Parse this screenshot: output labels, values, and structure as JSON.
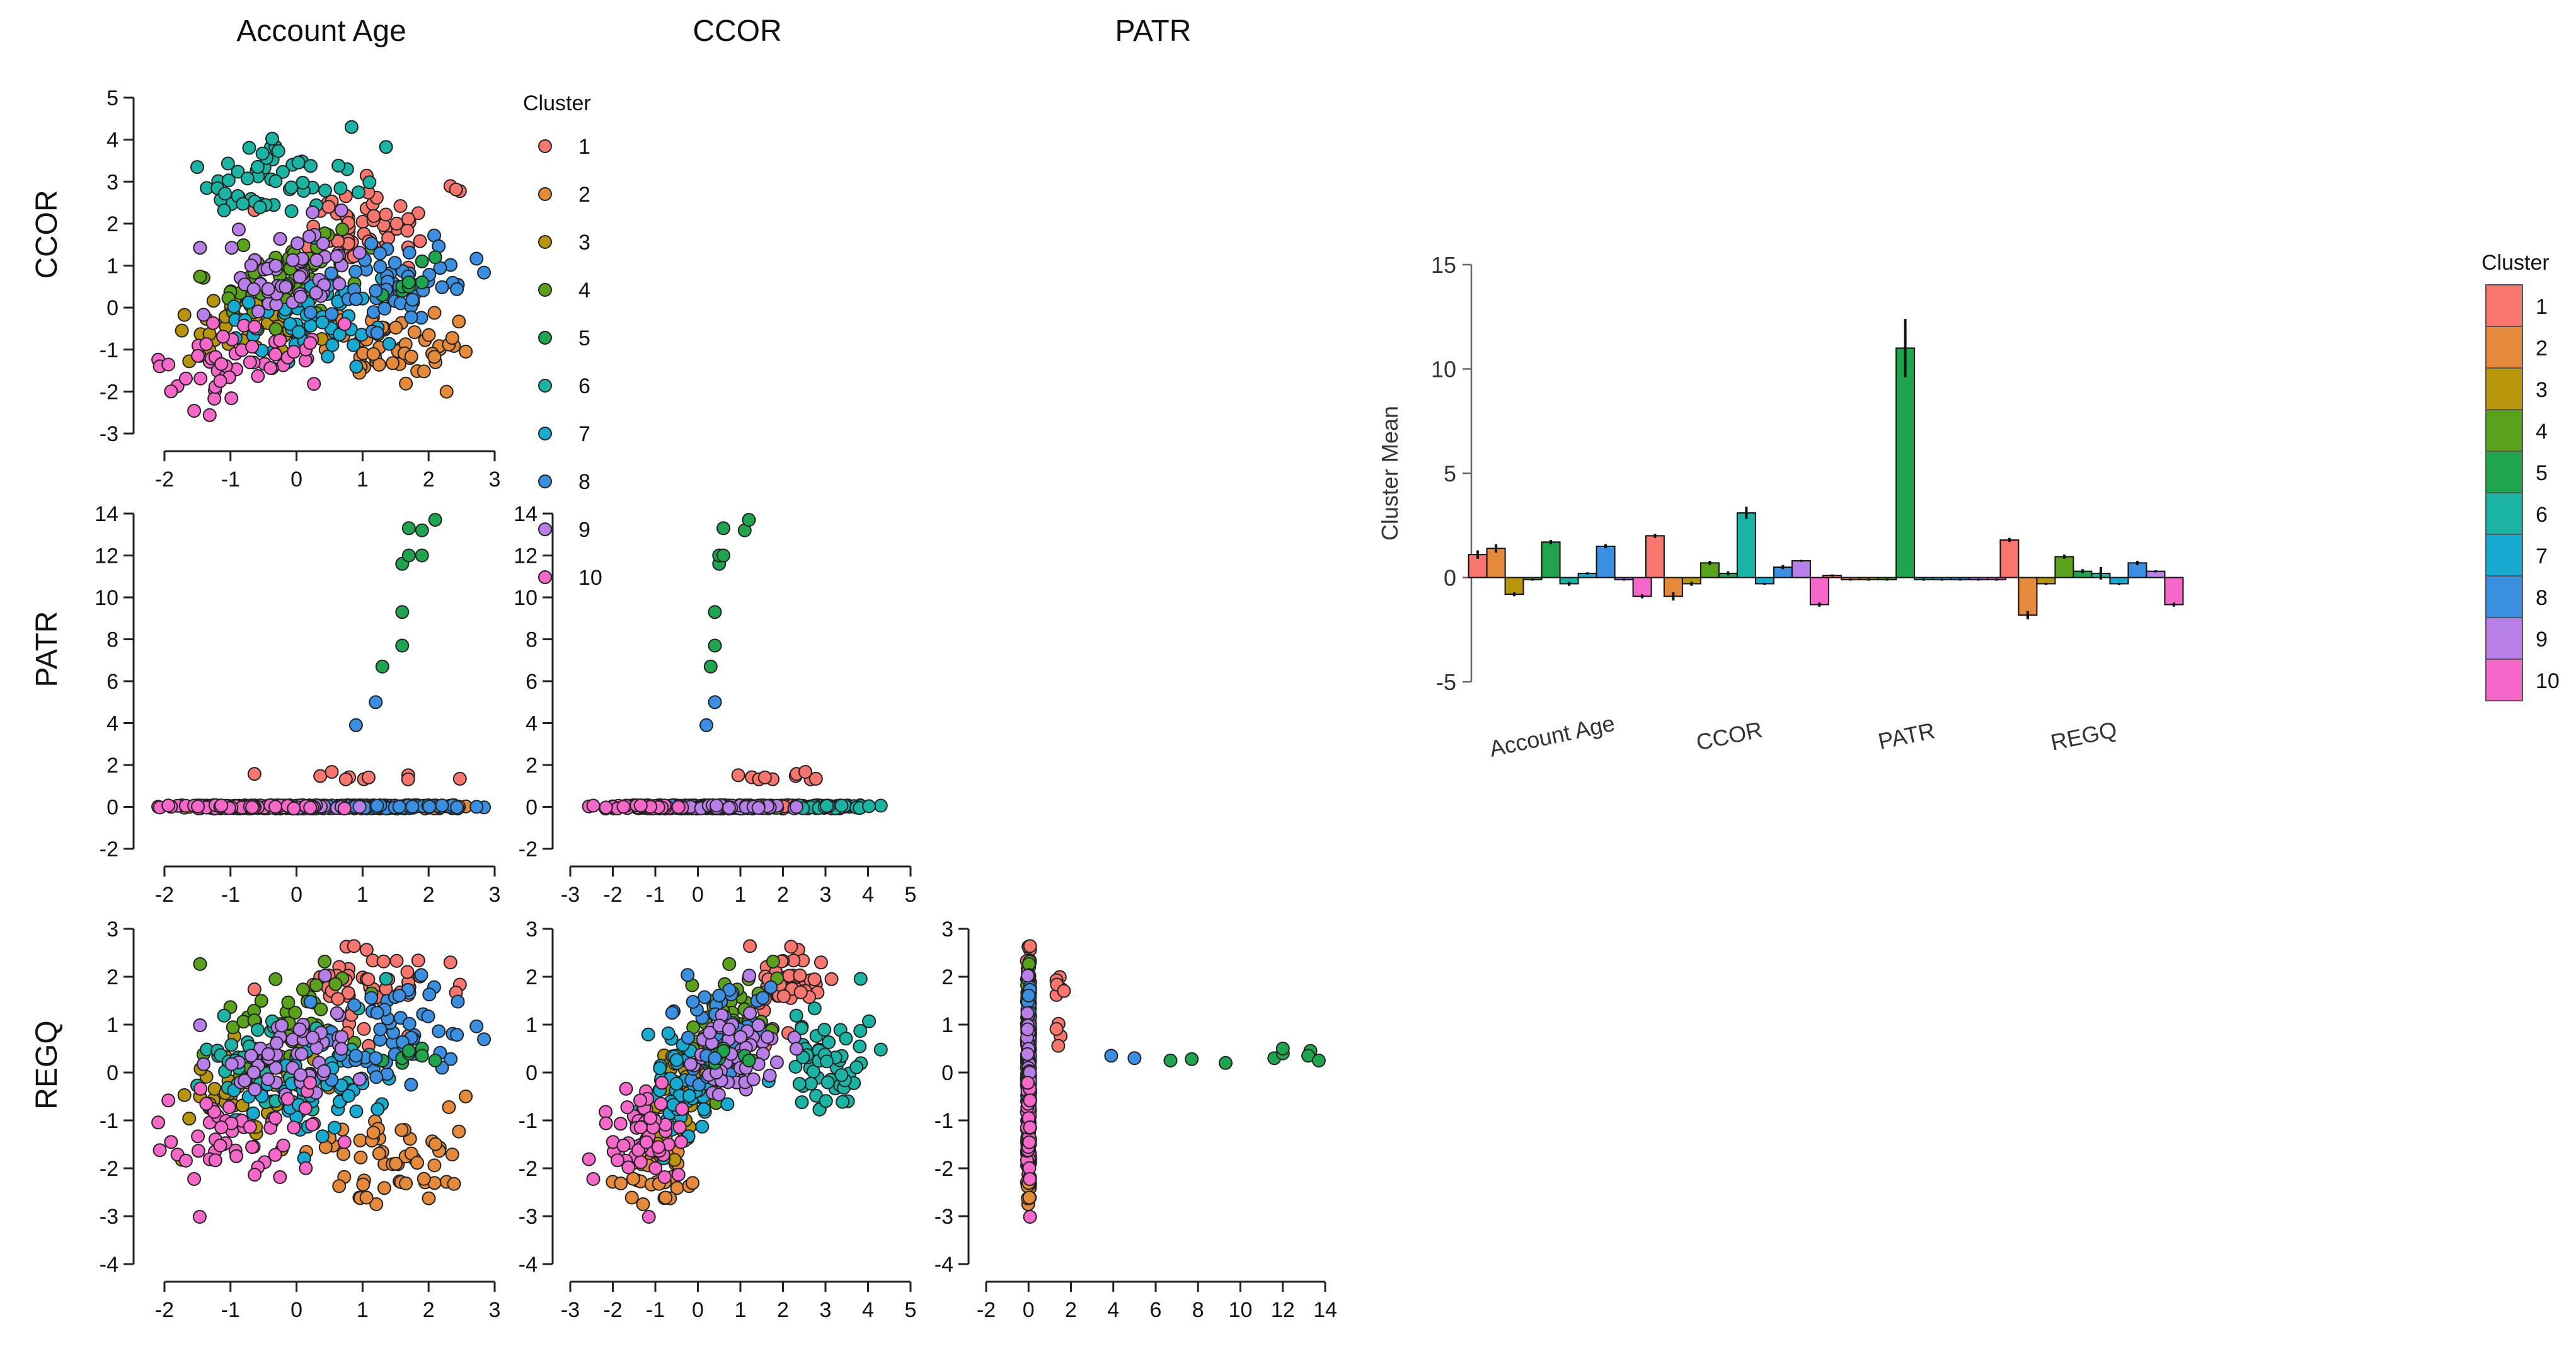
{
  "chart_data": [
    {
      "type": "scatter",
      "title": "",
      "variables": [
        "Account Age",
        "CCOR",
        "PATR",
        "REGQ"
      ],
      "column_titles": [
        "Account Age",
        "CCOR",
        "PATR"
      ],
      "row_titles": [
        "CCOR",
        "PATR",
        "REGQ"
      ],
      "legend": {
        "title": "Cluster",
        "labels": [
          "1",
          "2",
          "3",
          "4",
          "5",
          "6",
          "7",
          "8",
          "9",
          "10"
        ],
        "position": "top-center"
      },
      "cluster_colors": [
        "#F8766D",
        "#E58A3A",
        "#B8960C",
        "#5AA21B",
        "#1EA54D",
        "#1BB3A3",
        "#17ABD1",
        "#3A8FE0",
        "#B97FE8",
        "#F567C9"
      ],
      "axes": {
        "account_age_x": {
          "ticks": [
            -2,
            -1,
            0,
            1,
            2,
            3
          ],
          "range": [
            -2.2,
            3.0
          ]
        },
        "ccor_x": {
          "ticks": [
            -3,
            -2,
            -1,
            0,
            1,
            2,
            3,
            4,
            5
          ],
          "range": [
            -3.0,
            5.0
          ]
        },
        "patr_x": {
          "ticks": [
            -2,
            0,
            2,
            4,
            6,
            8,
            10,
            12,
            14
          ],
          "range": [
            -2.0,
            14.0
          ]
        },
        "ccor_y": {
          "ticks": [
            -3,
            -2,
            -1,
            0,
            1,
            2,
            3,
            4,
            5
          ],
          "range": [
            -3.0,
            5.0
          ]
        },
        "patr_y": {
          "ticks": [
            -2,
            0,
            2,
            4,
            6,
            8,
            10,
            12,
            14
          ],
          "range": [
            -2.0,
            14.0
          ]
        },
        "regq_y": {
          "ticks": [
            -4,
            -3,
            -2,
            -1,
            0,
            1,
            2,
            3
          ],
          "range": [
            -4.0,
            3.0
          ]
        }
      },
      "cluster_summary": [
        {
          "cluster": "1",
          "account_age": 1.1,
          "ccor": 2.0,
          "patr": 0.1,
          "regq": 1.8
        },
        {
          "cluster": "2",
          "account_age": 1.4,
          "ccor": -0.9,
          "patr": -0.1,
          "regq": -1.8
        },
        {
          "cluster": "3",
          "account_age": -0.8,
          "ccor": -0.3,
          "patr": -0.1,
          "regq": -0.3
        },
        {
          "cluster": "4",
          "account_age": -0.1,
          "ccor": 0.7,
          "patr": -0.1,
          "regq": 1.0
        },
        {
          "cluster": "5",
          "account_age": 1.7,
          "ccor": 0.2,
          "patr": 11.0,
          "regq": 0.3
        },
        {
          "cluster": "6",
          "account_age": -0.3,
          "ccor": 3.1,
          "patr": -0.1,
          "regq": 0.2
        },
        {
          "cluster": "7",
          "account_age": 0.2,
          "ccor": -0.3,
          "patr": -0.1,
          "regq": -0.3
        },
        {
          "cluster": "8",
          "account_age": 1.5,
          "ccor": 0.5,
          "patr": -0.1,
          "regq": 0.7
        },
        {
          "cluster": "9",
          "account_age": -0.1,
          "ccor": 0.8,
          "patr": -0.1,
          "regq": 0.3
        },
        {
          "cluster": "10",
          "account_age": -0.9,
          "ccor": -1.3,
          "patr": -0.1,
          "regq": -1.3
        }
      ],
      "outliers": {
        "patr_high_cluster5": [
          {
            "account_age": 1.3,
            "ccor": 0.3,
            "patr": 6.7,
            "regq": 0.25
          },
          {
            "account_age": 1.6,
            "ccor": 0.4,
            "patr": 7.7,
            "regq": 0.28
          },
          {
            "account_age": 1.6,
            "ccor": 0.4,
            "patr": 9.3,
            "regq": 0.2
          },
          {
            "account_age": 1.6,
            "ccor": 0.5,
            "patr": 11.6,
            "regq": 0.3
          },
          {
            "account_age": 1.7,
            "ccor": 0.5,
            "patr": 12.0,
            "regq": 0.4
          },
          {
            "account_age": 1.9,
            "ccor": 0.6,
            "patr": 12.0,
            "regq": 0.5
          },
          {
            "account_age": 1.7,
            "ccor": 0.6,
            "patr": 13.3,
            "regq": 0.45
          },
          {
            "account_age": 1.9,
            "ccor": 1.1,
            "patr": 13.2,
            "regq": 0.35
          },
          {
            "account_age": 2.1,
            "ccor": 1.2,
            "patr": 13.7,
            "regq": 0.25
          }
        ],
        "patr_high_cluster8": [
          {
            "account_age": 0.9,
            "ccor": 0.2,
            "patr": 3.9,
            "regq": 0.35
          },
          {
            "account_age": 1.2,
            "ccor": 0.4,
            "patr": 5.0,
            "regq": 0.3
          }
        ]
      }
    },
    {
      "type": "bar",
      "title": "",
      "xlabel": "",
      "ylabel": "Cluster Mean",
      "ylim": [
        -5,
        15
      ],
      "yticks": [
        -5,
        0,
        5,
        10,
        15
      ],
      "categories": [
        "Account Age",
        "CCOR",
        "PATR",
        "REGQ"
      ],
      "legend": {
        "title": "Cluster",
        "position": "right"
      },
      "series": [
        {
          "name": "1",
          "color": "#F8766D",
          "values": [
            1.1,
            2.0,
            0.1,
            1.8
          ],
          "errors": [
            0.2,
            0.1,
            0.05,
            0.1
          ]
        },
        {
          "name": "2",
          "color": "#E58A3A",
          "values": [
            1.4,
            -0.9,
            -0.1,
            -1.8
          ],
          "errors": [
            0.2,
            0.2,
            0.05,
            0.2
          ]
        },
        {
          "name": "3",
          "color": "#B8960C",
          "values": [
            -0.8,
            -0.3,
            -0.1,
            -0.3
          ],
          "errors": [
            0.1,
            0.1,
            0.05,
            0.05
          ]
        },
        {
          "name": "4",
          "color": "#5AA21B",
          "values": [
            -0.1,
            0.7,
            -0.1,
            1.0
          ],
          "errors": [
            0.05,
            0.1,
            0.05,
            0.1
          ]
        },
        {
          "name": "5",
          "color": "#1EA54D",
          "values": [
            1.7,
            0.2,
            11.0,
            0.3
          ],
          "errors": [
            0.1,
            0.1,
            1.4,
            0.1
          ]
        },
        {
          "name": "6",
          "color": "#1BB3A3",
          "values": [
            -0.3,
            3.1,
            -0.1,
            0.2
          ],
          "errors": [
            0.1,
            0.3,
            0.05,
            0.3
          ]
        },
        {
          "name": "7",
          "color": "#17ABD1",
          "values": [
            0.2,
            -0.3,
            -0.1,
            -0.3
          ],
          "errors": [
            0.05,
            0.05,
            0.05,
            0.05
          ]
        },
        {
          "name": "8",
          "color": "#3A8FE0",
          "values": [
            1.5,
            0.5,
            -0.1,
            0.7
          ],
          "errors": [
            0.1,
            0.1,
            0.05,
            0.1
          ]
        },
        {
          "name": "9",
          "color": "#B97FE8",
          "values": [
            -0.1,
            0.8,
            -0.1,
            0.3
          ],
          "errors": [
            0.05,
            0.05,
            0.05,
            0.05
          ]
        },
        {
          "name": "10",
          "color": "#F567C9",
          "values": [
            -0.9,
            -1.3,
            -0.1,
            -1.3
          ],
          "errors": [
            0.1,
            0.1,
            0.05,
            0.1
          ]
        }
      ]
    }
  ]
}
